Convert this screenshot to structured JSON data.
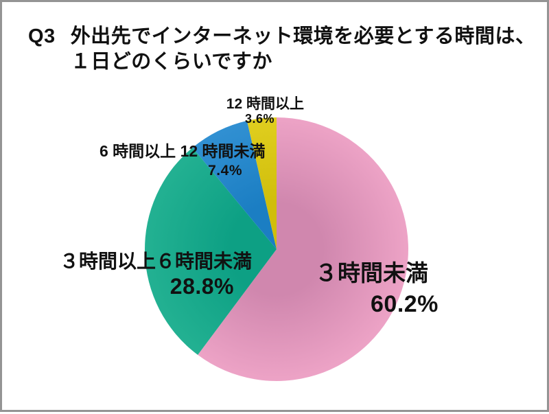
{
  "title": {
    "prefix": "Q3",
    "line1": "外出先でインターネット環境を必要とする時間は、",
    "line2": "１日どのくらいですか"
  },
  "colors": {
    "frame_border": "#949494",
    "background": "#ffffff",
    "text": "#111111"
  },
  "chart_data": {
    "type": "pie",
    "title": "Q3 外出先でインターネット環境を必要とする時間は、１日どのくらいですか",
    "direction": "clockwise",
    "start_angle_deg": 0,
    "legend": "none",
    "labels_on_chart": true,
    "unit": "%",
    "slices": [
      {
        "label": "３時間未満",
        "value": 60.2,
        "display": "60.2%",
        "color": "#d087ae",
        "color_light": "#eda3c6"
      },
      {
        "label": "３時間以上６時間未満",
        "value": 28.8,
        "display": "28.8%",
        "color": "#0da084",
        "color_light": "#23b192"
      },
      {
        "label": "6 時間以上 12 時間未満",
        "value": 7.4,
        "display": "7.4%",
        "color": "#1b7ec3",
        "color_light": "#3190d2"
      },
      {
        "label": "12 時間以上",
        "value": 3.6,
        "display": "3.6%",
        "color": "#d0be0b",
        "color_light": "#e0ce1f"
      }
    ]
  }
}
